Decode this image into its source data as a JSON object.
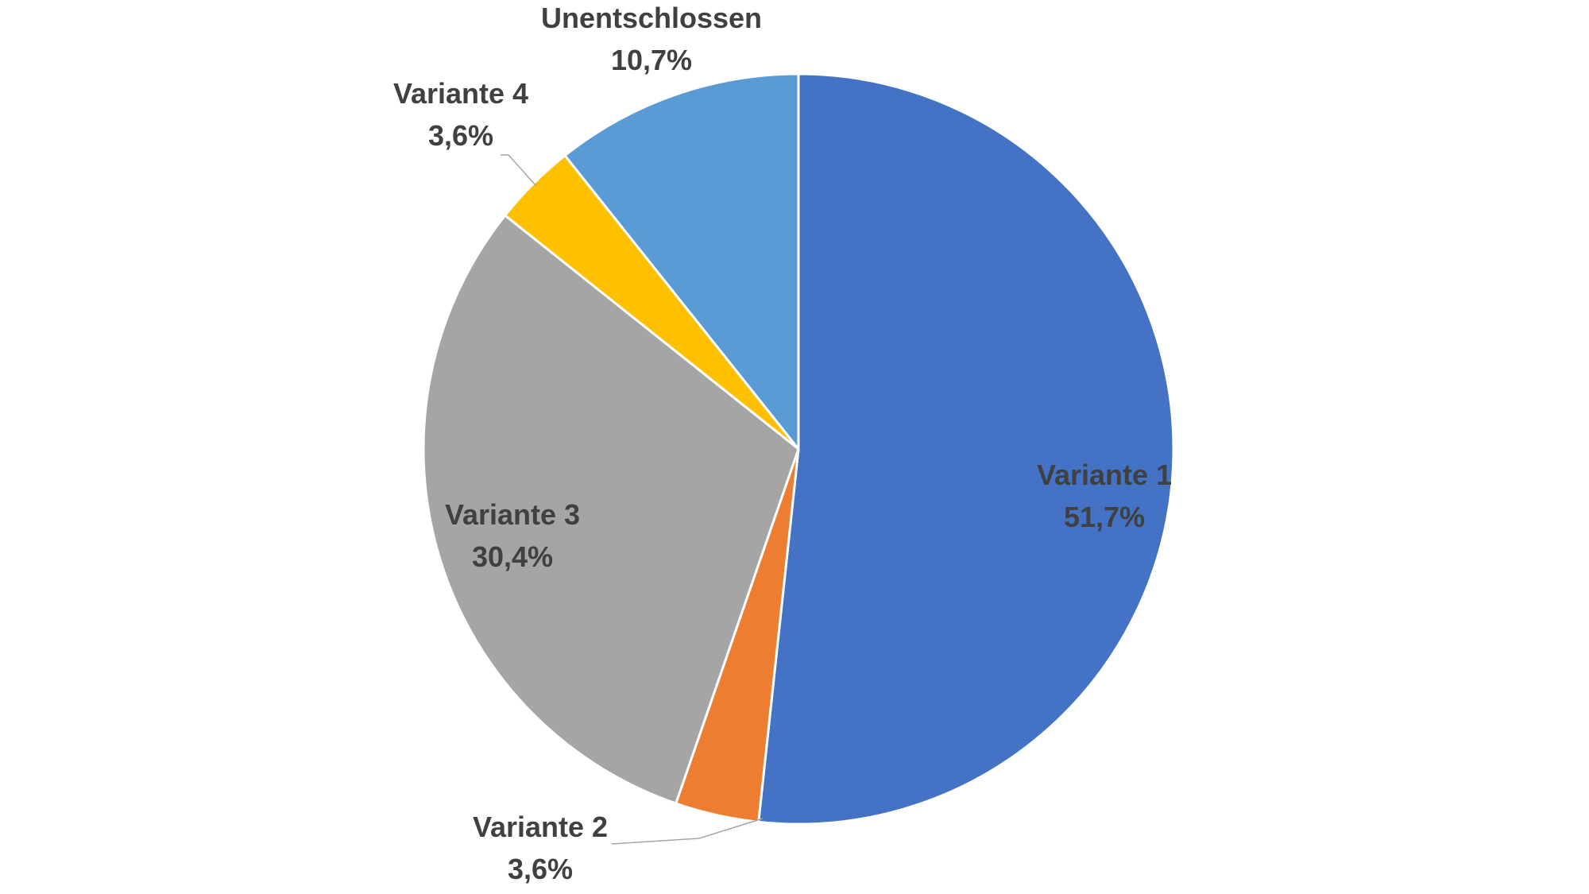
{
  "chart_data": {
    "type": "pie",
    "title": "",
    "start_angle_deg": 0,
    "direction": "clockwise",
    "slices": [
      {
        "name": "Variante 1",
        "value": 51.7,
        "label": "51,7%",
        "color": "#4472C4"
      },
      {
        "name": "Variante 2",
        "value": 3.6,
        "label": "3,6%",
        "color": "#ED7D31"
      },
      {
        "name": "Variante 3",
        "value": 30.4,
        "label": "30,4%",
        "color": "#A5A5A5"
      },
      {
        "name": "Variante 4",
        "value": 3.6,
        "label": "3,6%",
        "color": "#FFC000"
      },
      {
        "name": "Unentschlossen",
        "value": 10.7,
        "label": "10,7%",
        "color": "#5B9BD5"
      }
    ],
    "legend": "none",
    "label_color": "#404040",
    "leader_line_color": "#A6A6A6"
  }
}
